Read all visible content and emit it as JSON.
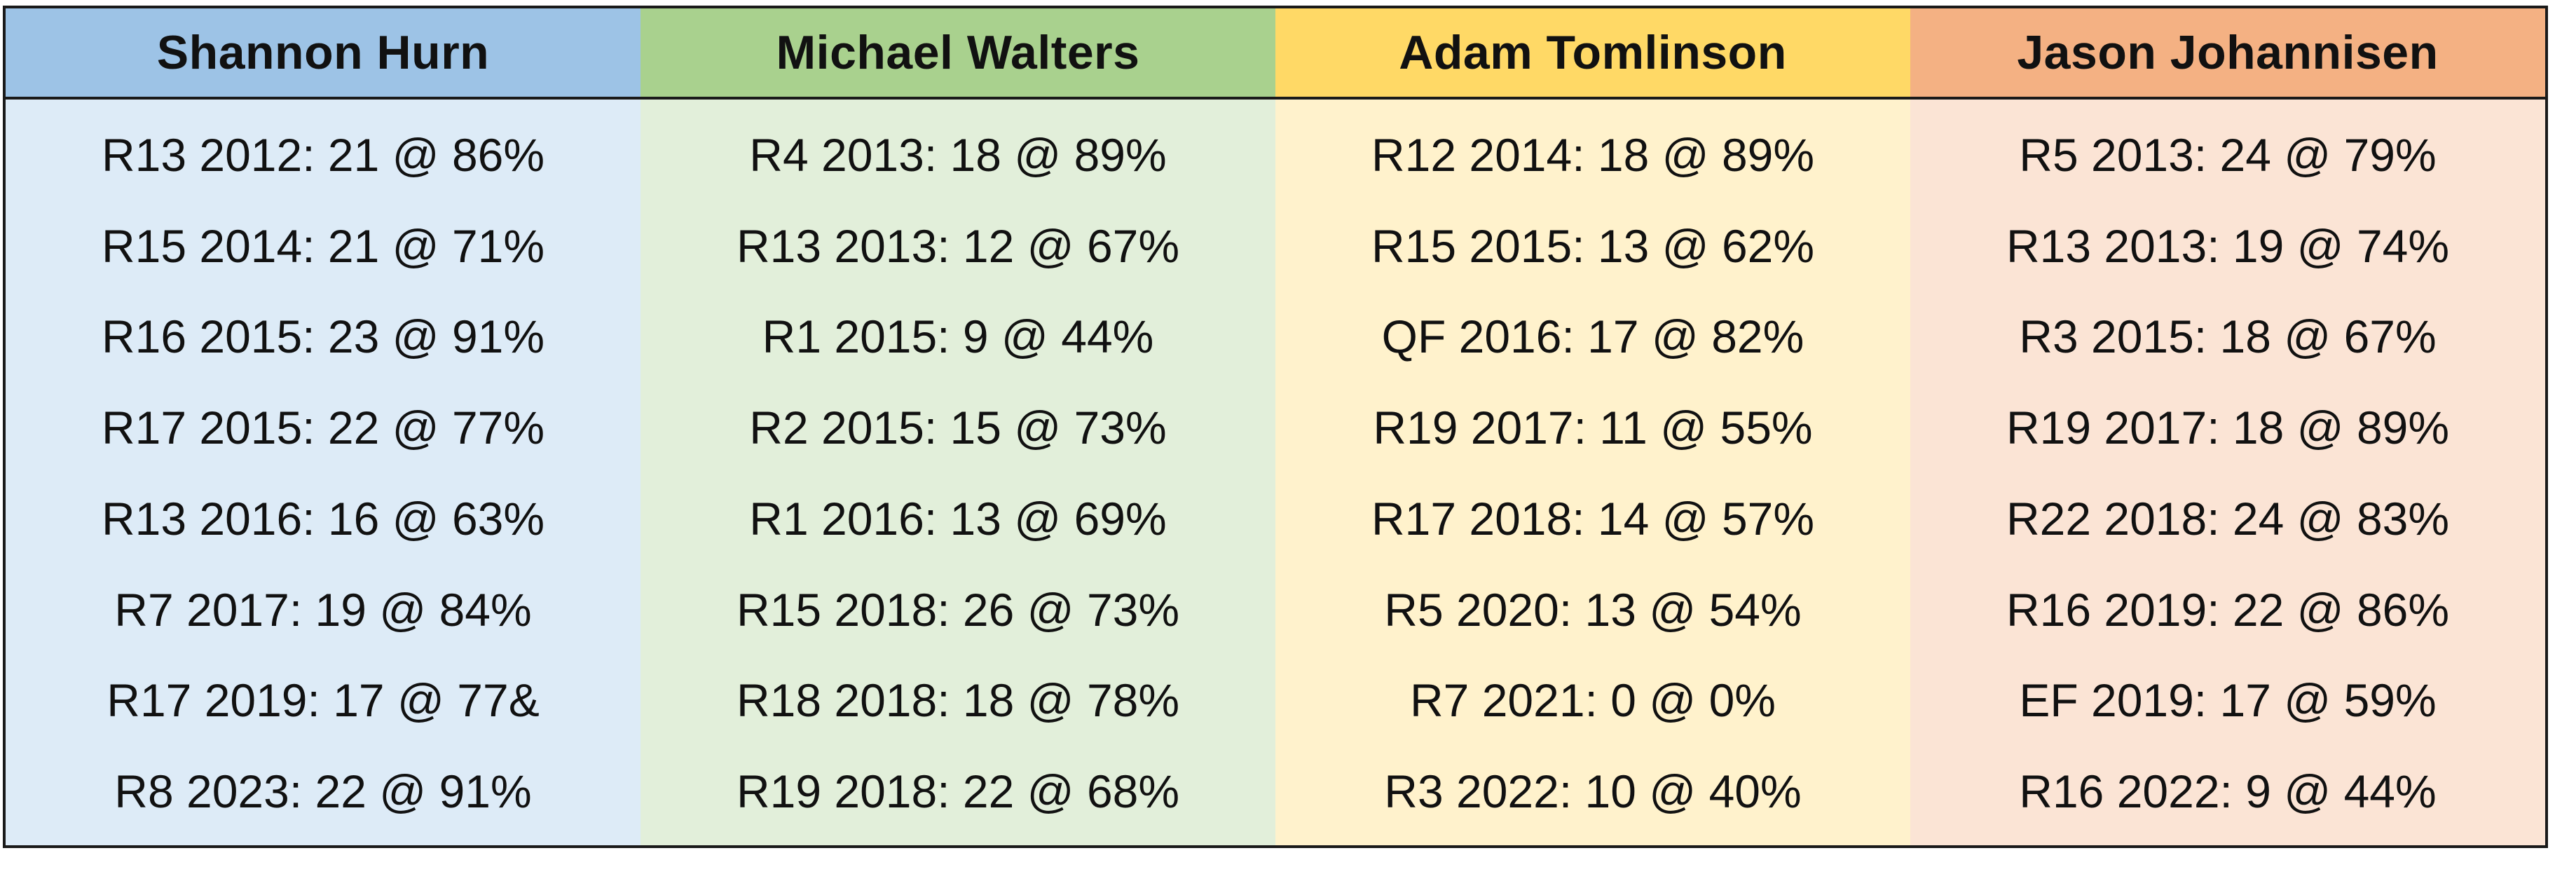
{
  "columns": [
    {
      "name": "Shannon Hurn",
      "header_color": "#9dc3e6",
      "body_color": "#ddebf7",
      "entries": [
        "R13 2012: 21 @ 86%",
        "R15 2014: 21 @ 71%",
        "R16 2015: 23 @ 91%",
        "R17 2015: 22 @ 77%",
        "R13 2016: 16 @ 63%",
        "R7 2017: 19 @ 84%",
        "R17 2019: 17 @ 77&",
        "R8 2023: 22 @ 91%"
      ]
    },
    {
      "name": "Michael Walters",
      "header_color": "#a9d18e",
      "body_color": "#e2efda",
      "entries": [
        "R4 2013: 18 @ 89%",
        "R13 2013: 12 @ 67%",
        "R1 2015: 9 @ 44%",
        "R2 2015: 15 @ 73%",
        "R1 2016: 13 @ 69%",
        "R15 2018: 26 @ 73%",
        "R18 2018: 18 @ 78%",
        "R19 2018: 22 @ 68%"
      ]
    },
    {
      "name": "Adam Tomlinson",
      "header_color": "#ffd966",
      "body_color": "#fff2cc",
      "entries": [
        "R12 2014: 18 @ 89%",
        "R15 2015: 13 @ 62%",
        "QF 2016: 17 @ 82%",
        "R19 2017: 11 @ 55%",
        "R17 2018: 14 @ 57%",
        "R5 2020: 13 @ 54%",
        "R7 2021: 0 @ 0%",
        "R3 2022: 10 @ 40%"
      ]
    },
    {
      "name": "Jason Johannisen",
      "header_color": "#f4b183",
      "body_color": "#fbe4d5",
      "entries": [
        "R5 2013: 24 @ 79%",
        "R13 2013: 19 @ 74%",
        "R3 2015: 18 @ 67%",
        "R19 2017: 18 @ 89%",
        "R22 2018: 24 @ 83%",
        "R16 2019: 22 @ 86%",
        "EF 2019: 17 @ 59%",
        "R16 2022: 9 @ 44%"
      ]
    }
  ]
}
